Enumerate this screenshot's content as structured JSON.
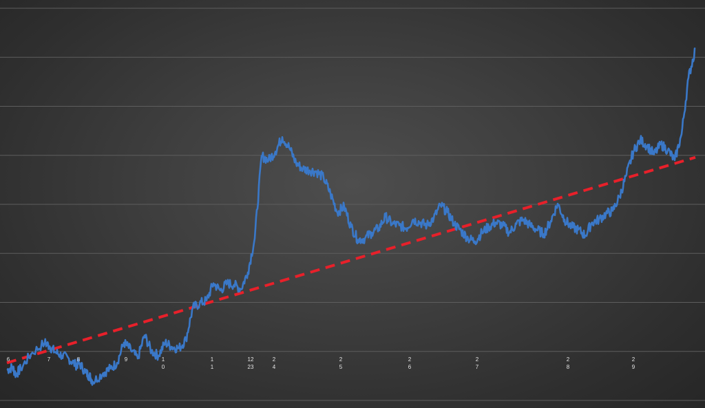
{
  "chart_data": {
    "type": "line",
    "title": "",
    "xlabel": "",
    "ylabel": "",
    "grid": true,
    "x_tick_labels": [
      "6",
      "7",
      "8",
      "9",
      "1\n0",
      "1\n1",
      "12\n23",
      "2\n4",
      "2\n5",
      "2\n6",
      "2\n7",
      "2\n8",
      "2\n9"
    ],
    "series": [
      {
        "kind": "price",
        "color": "#3a78c8",
        "points": [
          [
            0.0,
            10
          ],
          [
            0.8,
            14
          ],
          [
            1.3,
            4
          ],
          [
            2.0,
            12
          ],
          [
            3.5,
            32
          ],
          [
            5.5,
            48
          ],
          [
            6.2,
            43
          ],
          [
            7.0,
            35
          ],
          [
            8.0,
            30
          ],
          [
            9.0,
            26
          ],
          [
            10.0,
            17
          ],
          [
            10.5,
            20
          ],
          [
            11.5,
            6
          ],
          [
            12.0,
            2
          ],
          [
            12.5,
            -6
          ],
          [
            14.0,
            6
          ],
          [
            15.0,
            12
          ],
          [
            16.0,
            20
          ],
          [
            17.0,
            48
          ],
          [
            18.0,
            38
          ],
          [
            19.0,
            26
          ],
          [
            20.0,
            58
          ],
          [
            21.0,
            36
          ],
          [
            22.0,
            30
          ],
          [
            23.0,
            48
          ],
          [
            24.0,
            42
          ],
          [
            25.0,
            40
          ],
          [
            26.0,
            52
          ],
          [
            27.0,
            96
          ],
          [
            28.0,
            102
          ],
          [
            29.0,
            106
          ],
          [
            30.0,
            130
          ],
          [
            31.0,
            120
          ],
          [
            32.0,
            130
          ],
          [
            33.0,
            128
          ],
          [
            34.0,
            122
          ],
          [
            35.0,
            145
          ],
          [
            36.0,
            192
          ],
          [
            37.0,
            306
          ],
          [
            38.0,
            300
          ],
          [
            39.0,
            312
          ],
          [
            40.0,
            332
          ],
          [
            41.0,
            318
          ],
          [
            42.0,
            296
          ],
          [
            43.0,
            288
          ],
          [
            44.0,
            286
          ],
          [
            45.0,
            284
          ],
          [
            46.0,
            276
          ],
          [
            47.0,
            254
          ],
          [
            48.0,
            228
          ],
          [
            49.0,
            236
          ],
          [
            50.0,
            208
          ],
          [
            51.0,
            190
          ],
          [
            52.0,
            192
          ],
          [
            53.0,
            200
          ],
          [
            54.0,
            206
          ],
          [
            55.0,
            222
          ],
          [
            56.0,
            212
          ],
          [
            57.0,
            210
          ],
          [
            58.0,
            206
          ],
          [
            59.0,
            218
          ],
          [
            60.0,
            214
          ],
          [
            61.0,
            210
          ],
          [
            62.0,
            220
          ],
          [
            63.0,
            238
          ],
          [
            64.0,
            228
          ],
          [
            65.0,
            212
          ],
          [
            66.0,
            202
          ],
          [
            67.0,
            192
          ],
          [
            68.0,
            188
          ],
          [
            69.0,
            200
          ],
          [
            70.0,
            208
          ],
          [
            71.0,
            214
          ],
          [
            72.0,
            210
          ],
          [
            73.0,
            200
          ],
          [
            74.0,
            212
          ],
          [
            75.0,
            218
          ],
          [
            76.0,
            210
          ],
          [
            77.0,
            204
          ],
          [
            78.0,
            198
          ],
          [
            79.0,
            216
          ],
          [
            80.0,
            240
          ],
          [
            81.0,
            218
          ],
          [
            82.0,
            208
          ],
          [
            83.0,
            204
          ],
          [
            84.0,
            196
          ],
          [
            85.0,
            214
          ],
          [
            86.0,
            218
          ],
          [
            87.0,
            226
          ],
          [
            88.0,
            230
          ],
          [
            89.0,
            250
          ],
          [
            90.0,
            280
          ],
          [
            91.0,
            312
          ],
          [
            92.0,
            328
          ],
          [
            93.0,
            320
          ],
          [
            94.0,
            308
          ],
          [
            95.0,
            322
          ],
          [
            96.0,
            314
          ],
          [
            97.0,
            300
          ],
          [
            98.0,
            336
          ],
          [
            99.0,
            414
          ],
          [
            100.0,
            454
          ]
        ]
      },
      {
        "kind": "trendline",
        "color": "#e8202a",
        "dashed": true,
        "points": [
          [
            0.0,
            20
          ],
          [
            100.0,
            304
          ]
        ]
      }
    ],
    "ylim": [
      -30,
      510
    ],
    "xlim": [
      0,
      100
    ]
  }
}
